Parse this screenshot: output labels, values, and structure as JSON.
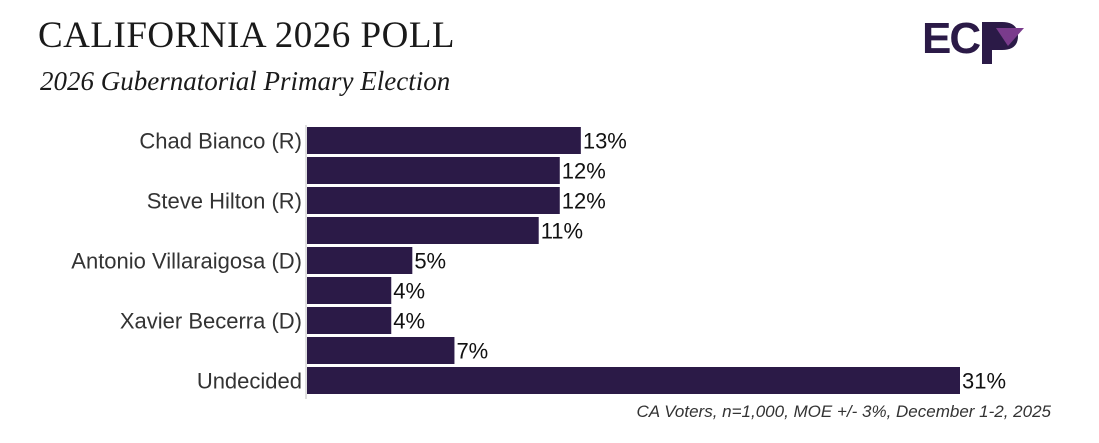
{
  "header": {
    "title": "CALIFORNIA 2026 POLL",
    "subtitle": "2026 Gubernatorial Primary Election"
  },
  "logo": {
    "text": "EC",
    "icon": "ecp-logo-icon",
    "color": "#2b1a47",
    "accent": "#7a3b8c"
  },
  "footnote": "CA Voters, n=1,000, MOE +/- 3%, December 1-2, 2025",
  "chart_data": {
    "type": "bar",
    "orientation": "horizontal",
    "categories": [
      "Chad Bianco (R)",
      "",
      "Steve Hilton (R)",
      "",
      "Antonio Villaraigosa (D)",
      "",
      "Xavier Becerra (D)",
      "",
      "Undecided"
    ],
    "values": [
      13,
      12,
      12,
      11,
      5,
      4,
      4,
      7,
      31
    ],
    "value_labels": [
      "13%",
      "12%",
      "12%",
      "11%",
      "5%",
      "4%",
      "4%",
      "7%",
      "31%"
    ],
    "xlim": [
      0,
      31
    ],
    "bar_color": "#2b1a47",
    "grid": false,
    "legend": "none"
  }
}
